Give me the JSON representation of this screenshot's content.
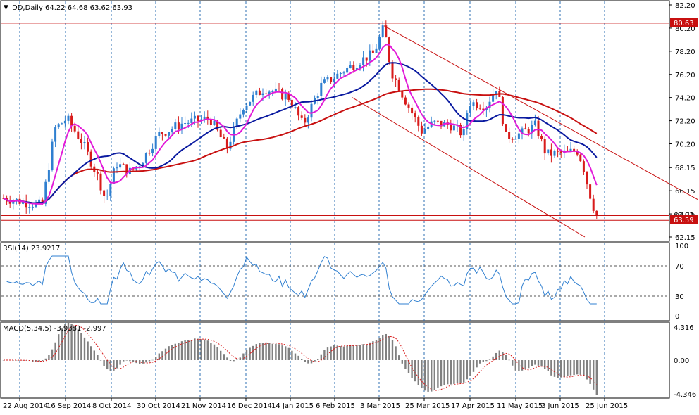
{
  "header": {
    "arrow": "▼",
    "symbol": "DD,Daily",
    "ohlc": "64.22 64.68 63.62 63.93"
  },
  "price_panel": {
    "y_ticks": [
      "82.20",
      "80.20",
      "78.20",
      "76.20",
      "74.20",
      "72.20",
      "70.20",
      "68.15",
      "66.15",
      "64.15",
      "62.15"
    ],
    "resistance_label": "80.63",
    "current_label": "63.59",
    "hidden_label": "63.93"
  },
  "rsi_panel": {
    "title": "RSI(14) 23.9217",
    "ticks": [
      "100",
      "70",
      "30",
      "0"
    ]
  },
  "macd_panel": {
    "title": "MACD(5,34,5) -3.9381 -2.997",
    "ticks": [
      "4.316",
      "0.00",
      "-4.346"
    ]
  },
  "x_axis": {
    "labels": [
      "22 Aug 2014",
      "16 Sep 2014",
      "8 Oct 2014",
      "30 Oct 2014",
      "21 Nov 2014",
      "16 Dec 2014",
      "14 Jan 2015",
      "6 Feb 2015",
      "3 Mar 2015",
      "25 Mar 2015",
      "17 Apr 2015",
      "11 May 2015",
      "3 Jun 2015",
      "25 Jun 2015"
    ]
  },
  "colors": {
    "grid": "#2e6fb3",
    "up_candle": "#2f7fd0",
    "down_candle": "#d81b1b",
    "ma_fast": "#e21ad8",
    "ma_mid": "#0a1aa0",
    "ma_slow": "#c81010",
    "rsi_line": "#2f7fd0",
    "macd_bars": "#808080",
    "macd_signal": "#d81b1b",
    "channel": "#c81010"
  },
  "chart_data": {
    "type": "candlestick",
    "series": [
      {
        "name": "DD,Daily",
        "last_ohlc": [
          64.22,
          64.68,
          63.62,
          63.93
        ]
      }
    ],
    "resistance_level": 80.63,
    "current_bid": 63.59,
    "price_ylim": [
      62.15,
      82.2
    ],
    "rsi": {
      "period": 14,
      "value": 23.9217,
      "levels": [
        70,
        30
      ],
      "ylim": [
        0,
        100
      ]
    },
    "macd": {
      "params": [
        5,
        34,
        5
      ],
      "main": -3.9381,
      "signal": -2.997,
      "ylim": [
        -4.346,
        4.316
      ]
    },
    "moving_averages": 3,
    "grid": true
  }
}
